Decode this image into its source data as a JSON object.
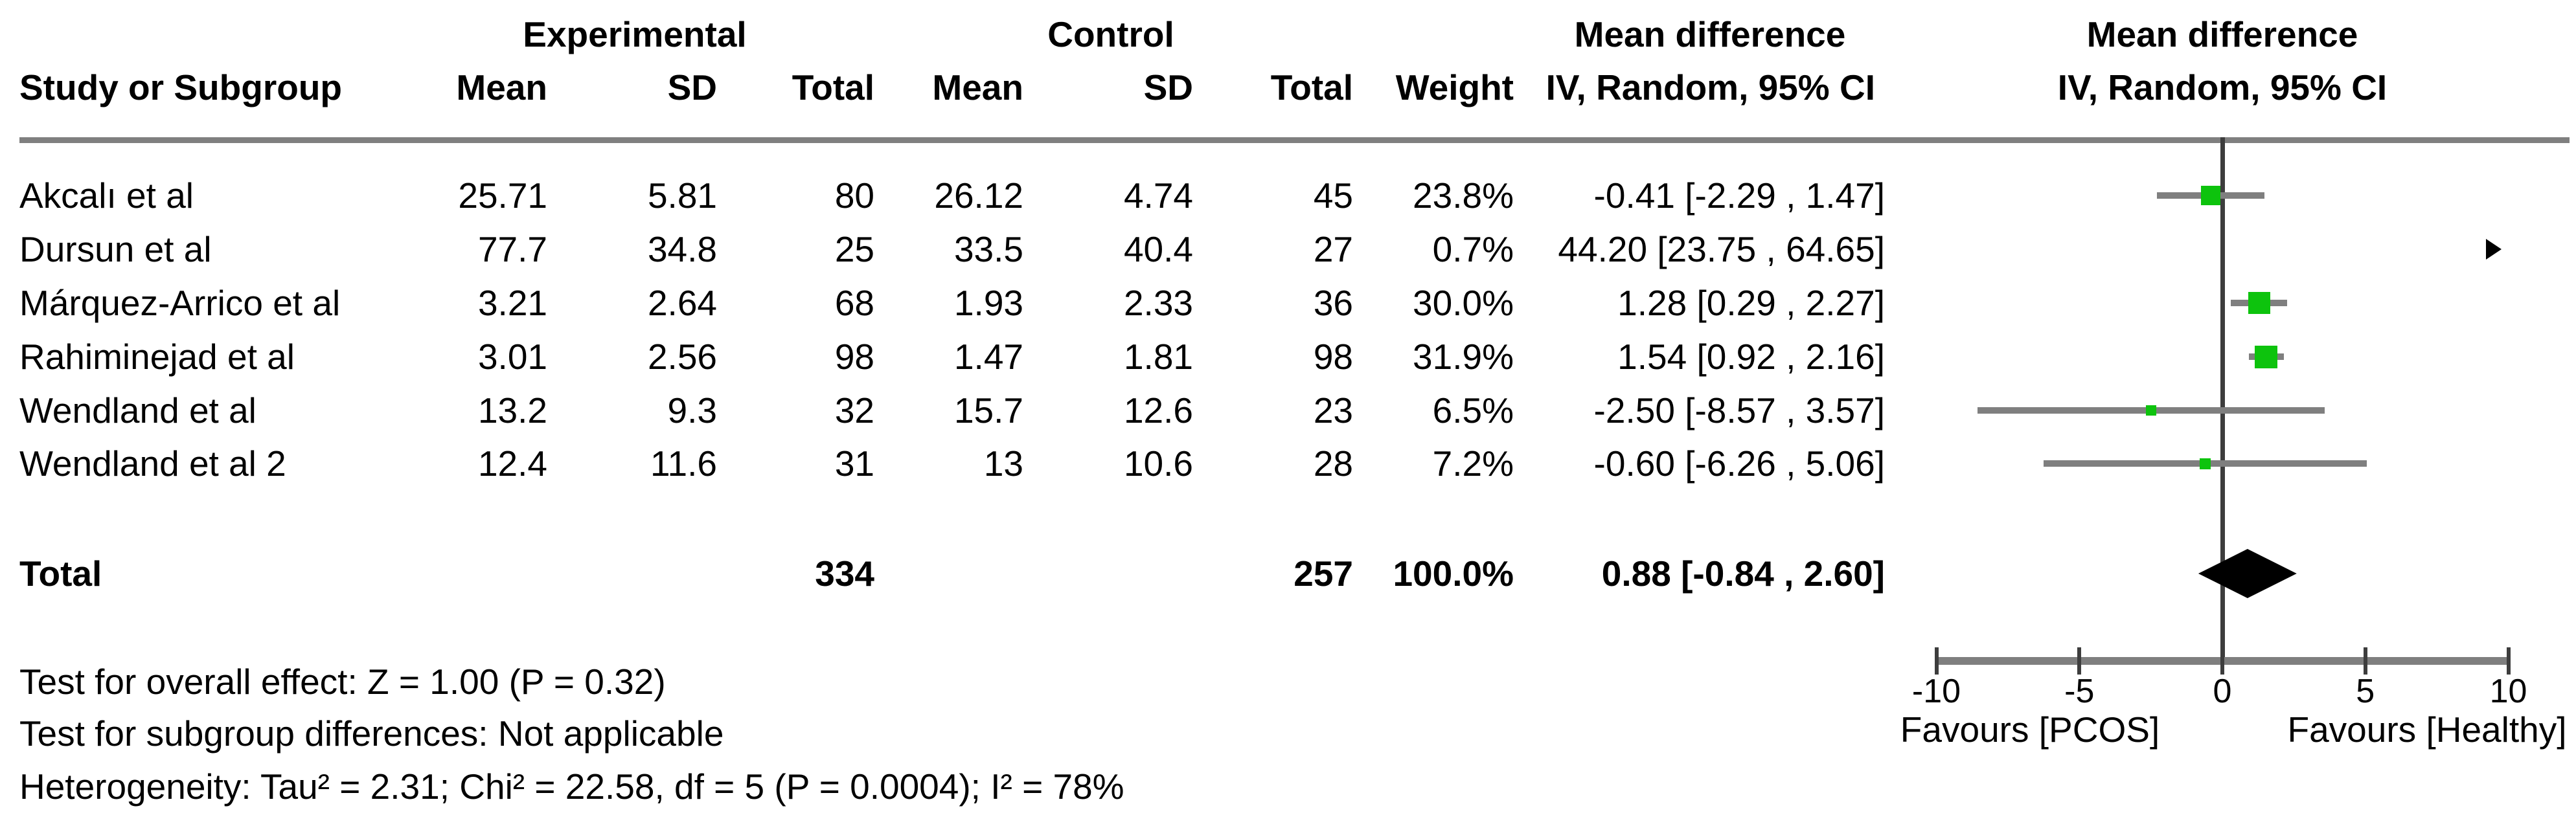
{
  "table": {
    "group_headers": {
      "experimental": "Experimental",
      "control": "Control",
      "mean_difference_text": "Mean difference",
      "mean_difference_plot": "Mean difference"
    },
    "col_headers": {
      "study": "Study or Subgroup",
      "mean_exp": "Mean",
      "sd_exp": "SD",
      "total_exp": "Total",
      "mean_ctrl": "Mean",
      "sd_ctrl": "SD",
      "total_ctrl": "Total",
      "weight": "Weight",
      "ci_text": "IV, Random, 95% CI",
      "ci_plot": "IV, Random, 95% CI"
    },
    "rows": [
      {
        "study": "Akcalı et al",
        "mean_e": "25.71",
        "sd_e": "5.81",
        "total_e": "80",
        "mean_c": "26.12",
        "sd_c": "4.74",
        "total_c": "45",
        "weight": "23.8%",
        "ci": "-0.41 [-2.29 , 1.47]"
      },
      {
        "study": "Dursun et al",
        "mean_e": "77.7",
        "sd_e": "34.8",
        "total_e": "25",
        "mean_c": "33.5",
        "sd_c": "40.4",
        "total_c": "27",
        "weight": "0.7%",
        "ci": "44.20 [23.75 , 64.65]"
      },
      {
        "study": "Márquez-Arrico et al",
        "mean_e": "3.21",
        "sd_e": "2.64",
        "total_e": "68",
        "mean_c": "1.93",
        "sd_c": "2.33",
        "total_c": "36",
        "weight": "30.0%",
        "ci": "1.28 [0.29 , 2.27]"
      },
      {
        "study": "Rahiminejad et al",
        "mean_e": "3.01",
        "sd_e": "2.56",
        "total_e": "98",
        "mean_c": "1.47",
        "sd_c": "1.81",
        "total_c": "98",
        "weight": "31.9%",
        "ci": "1.54 [0.92 , 2.16]"
      },
      {
        "study": "Wendland et al",
        "mean_e": "13.2",
        "sd_e": "9.3",
        "total_e": "32",
        "mean_c": "15.7",
        "sd_c": "12.6",
        "total_c": "23",
        "weight": "6.5%",
        "ci": "-2.50 [-8.57 , 3.57]"
      },
      {
        "study": "Wendland et al 2",
        "mean_e": "12.4",
        "sd_e": "11.6",
        "total_e": "31",
        "mean_c": "13",
        "sd_c": "10.6",
        "total_c": "28",
        "weight": "7.2%",
        "ci": "-0.60 [-6.26 , 5.06]"
      }
    ],
    "total_row": {
      "label": "Total",
      "total_e": "334",
      "total_c": "257",
      "weight": "100.0%",
      "ci": "0.88 [-0.84 , 2.60]"
    }
  },
  "footer": {
    "overall_effect": "Test for overall effect: Z = 1.00 (P = 0.32)",
    "subgroup_differences": "Test for subgroup differences: Not applicable",
    "heterogeneity": "Heterogeneity: Tau² = 2.31; Chi² = 22.58, df = 5 (P = 0.0004); I² = 78%"
  },
  "chart_data": {
    "type": "forest",
    "effect_measure": "Mean difference",
    "method": "IV, Random, 95% CI",
    "x_axis": {
      "min": -10,
      "max": 10,
      "ticks": [
        -10,
        -5,
        0,
        5,
        10
      ],
      "zero_line": 0
    },
    "favours_left": "Favours [PCOS]",
    "favours_right": "Favours [Healthy]",
    "studies": [
      {
        "name": "Akcalı et al",
        "md": -0.41,
        "ci_low": -2.29,
        "ci_high": 1.47,
        "weight_pct": 23.8
      },
      {
        "name": "Dursun et al",
        "md": 44.2,
        "ci_low": 23.75,
        "ci_high": 64.65,
        "weight_pct": 0.7
      },
      {
        "name": "Márquez-Arrico et al",
        "md": 1.28,
        "ci_low": 0.29,
        "ci_high": 2.27,
        "weight_pct": 30.0
      },
      {
        "name": "Rahiminejad et al",
        "md": 1.54,
        "ci_low": 0.92,
        "ci_high": 2.16,
        "weight_pct": 31.9
      },
      {
        "name": "Wendland et al",
        "md": -2.5,
        "ci_low": -8.57,
        "ci_high": 3.57,
        "weight_pct": 6.5
      },
      {
        "name": "Wendland et al 2",
        "md": -0.6,
        "ci_low": -6.26,
        "ci_high": 5.06,
        "weight_pct": 7.2
      }
    ],
    "total": {
      "md": 0.88,
      "ci_low": -0.84,
      "ci_high": 2.6,
      "weight_pct": 100.0
    },
    "colors": {
      "marker_green": "#0dc30d",
      "ci_gray": "#7f7f7f",
      "axis_gray": "#7f7f7f",
      "line_dark": "#3d3d3d",
      "diamond": "#000000"
    }
  }
}
